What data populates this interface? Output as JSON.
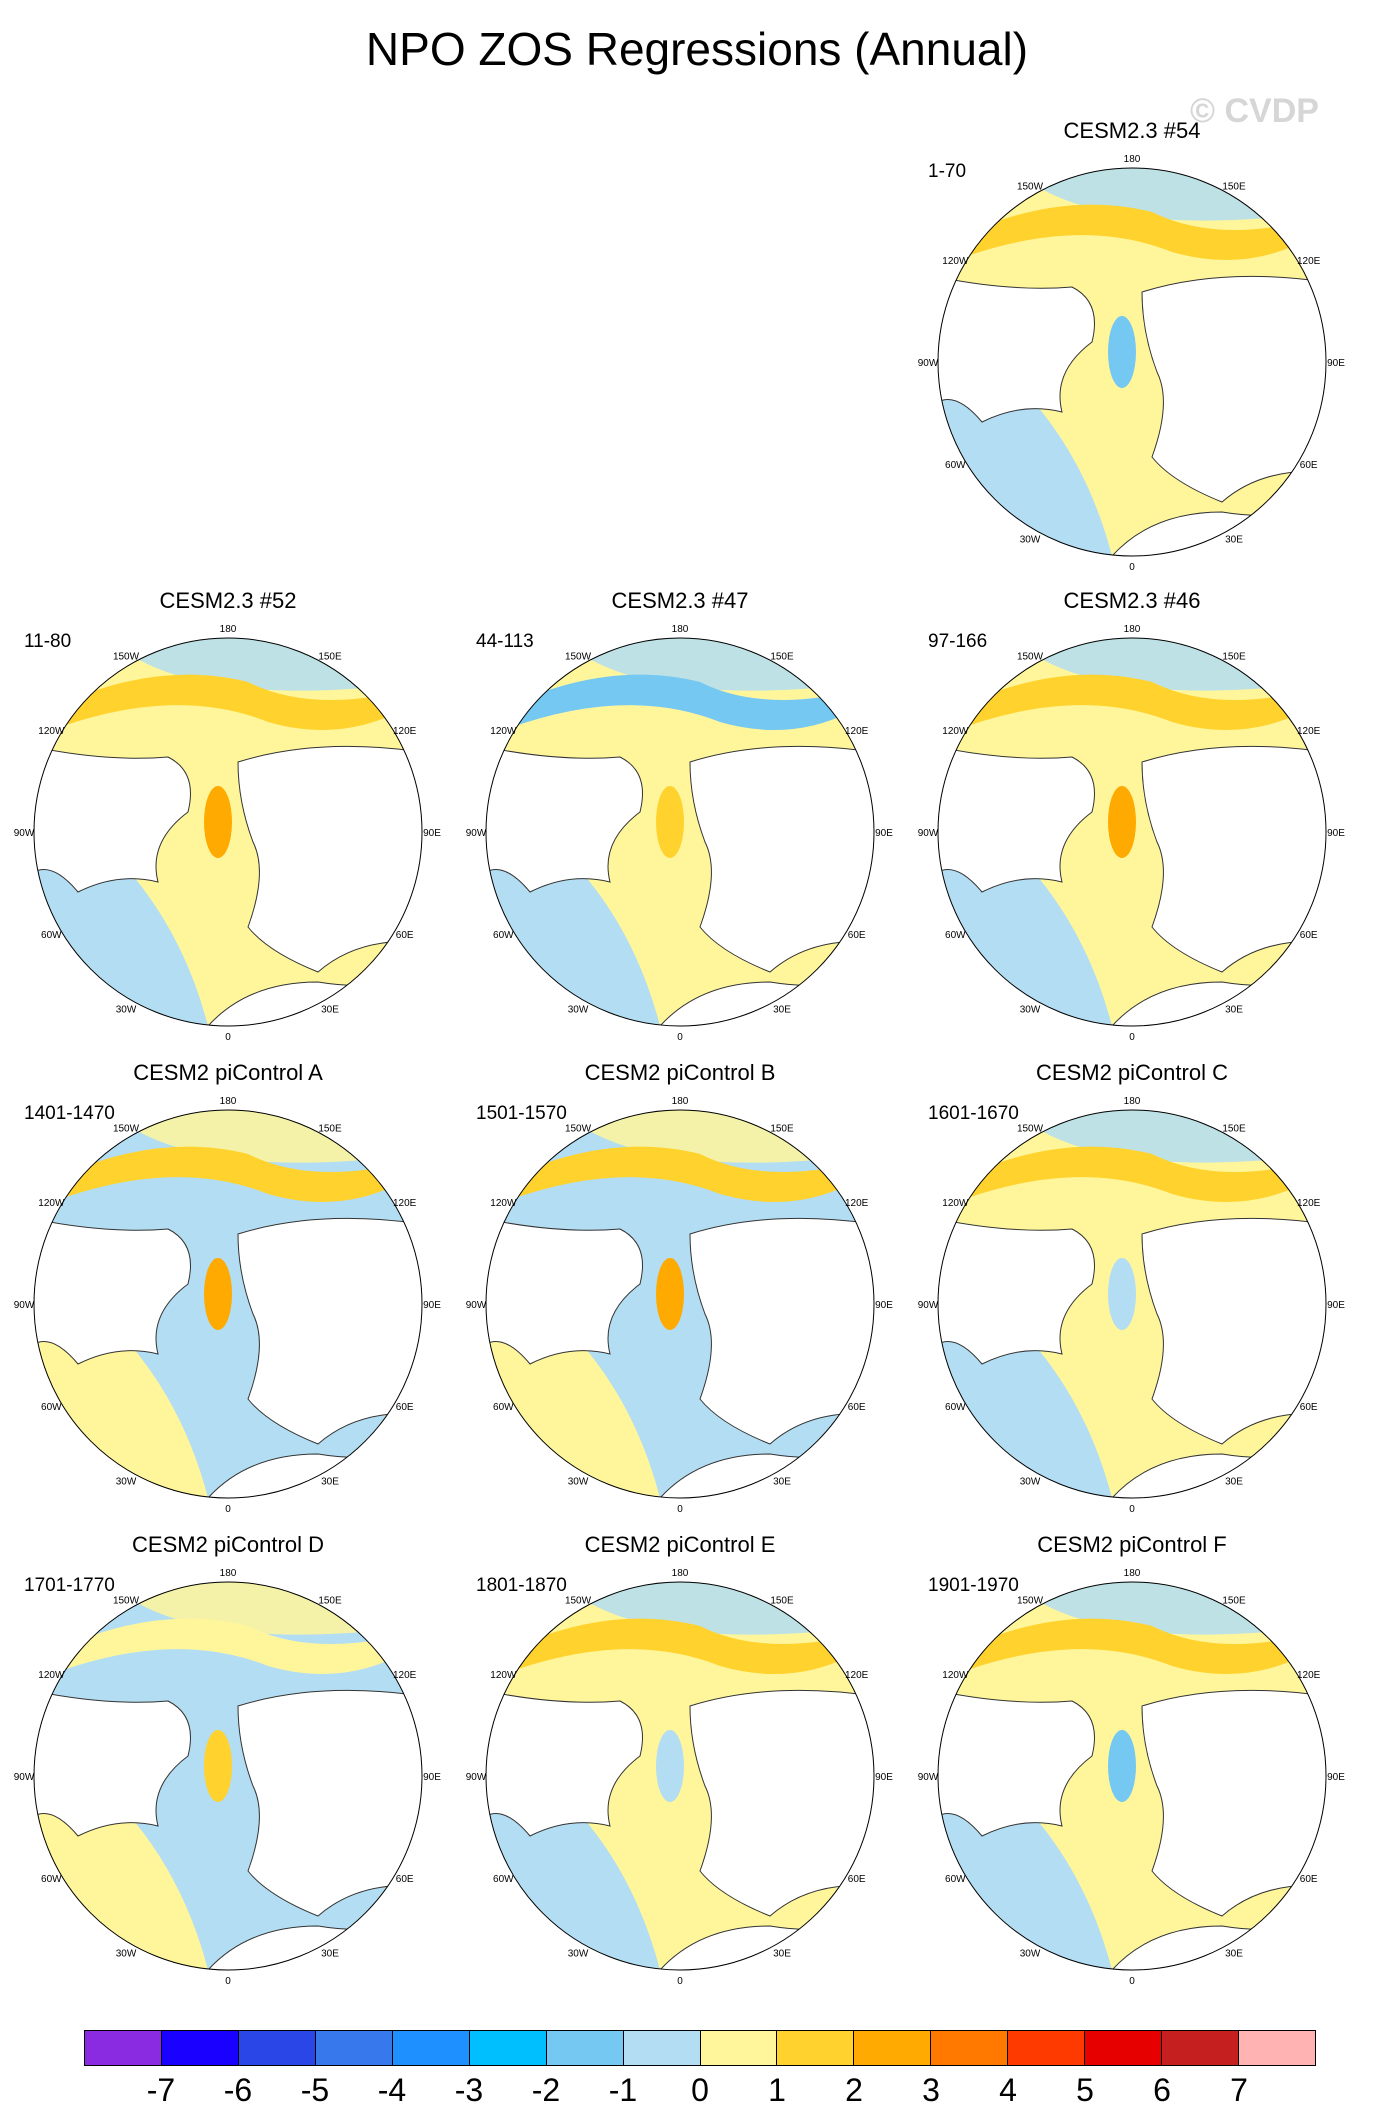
{
  "title": "NPO ZOS Regressions (Annual)",
  "watermark": "© CVDP",
  "lon_labels": [
    "180",
    "150E",
    "120E",
    "90E",
    "60E",
    "30E",
    "0",
    "30W",
    "60W",
    "90W",
    "120W",
    "150W"
  ],
  "colorbar": {
    "tick_labels": [
      "-7",
      "-6",
      "-5",
      "-4",
      "-3",
      "-2",
      "-1",
      "0",
      "1",
      "2",
      "3",
      "4",
      "5",
      "6",
      "7"
    ],
    "colors": [
      "#8a2be2",
      "#1a00ff",
      "#2a46e6",
      "#3779ec",
      "#1e90ff",
      "#00bfff",
      "#74c8f2",
      "#b3ddf2",
      "#fff69b",
      "#ffd22e",
      "#ffaa00",
      "#ff7800",
      "#ff3a00",
      "#e60000",
      "#c61f1f",
      "#ffb3b3"
    ]
  },
  "chart_data": [
    {
      "type": "heatmap",
      "title": "CESM2.3 #54",
      "years": "1-70",
      "dominant": [
        "#fff69b",
        "#b3ddf2"
      ],
      "accent": [
        "#ffd22e",
        "#74c8f2"
      ]
    },
    {
      "type": "heatmap",
      "title": "CESM2.3 #52",
      "years": "11-80",
      "dominant": [
        "#fff69b",
        "#b3ddf2"
      ],
      "accent": [
        "#ffd22e",
        "#ffaa00"
      ]
    },
    {
      "type": "heatmap",
      "title": "CESM2.3 #47",
      "years": "44-113",
      "dominant": [
        "#fff69b",
        "#b3ddf2"
      ],
      "accent": [
        "#74c8f2",
        "#ffd22e"
      ]
    },
    {
      "type": "heatmap",
      "title": "CESM2.3 #46",
      "years": "97-166",
      "dominant": [
        "#fff69b",
        "#b3ddf2"
      ],
      "accent": [
        "#ffd22e",
        "#ffaa00"
      ]
    },
    {
      "type": "heatmap",
      "title": "CESM2 piControl A",
      "years": "1401-1470",
      "dominant": [
        "#b3ddf2",
        "#fff69b"
      ],
      "accent": [
        "#ffd22e",
        "#ffaa00"
      ]
    },
    {
      "type": "heatmap",
      "title": "CESM2 piControl B",
      "years": "1501-1570",
      "dominant": [
        "#b3ddf2",
        "#fff69b"
      ],
      "accent": [
        "#ffd22e",
        "#ffaa00"
      ]
    },
    {
      "type": "heatmap",
      "title": "CESM2 piControl C",
      "years": "1601-1670",
      "dominant": [
        "#fff69b",
        "#b3ddf2"
      ],
      "accent": [
        "#ffd22e",
        "#b3ddf2"
      ]
    },
    {
      "type": "heatmap",
      "title": "CESM2 piControl D",
      "years": "1701-1770",
      "dominant": [
        "#b3ddf2",
        "#fff69b"
      ],
      "accent": [
        "#fff69b",
        "#ffd22e"
      ]
    },
    {
      "type": "heatmap",
      "title": "CESM2 piControl E",
      "years": "1801-1870",
      "dominant": [
        "#fff69b",
        "#b3ddf2"
      ],
      "accent": [
        "#ffd22e",
        "#b3ddf2"
      ]
    },
    {
      "type": "heatmap",
      "title": "CESM2 piControl F",
      "years": "1901-1970",
      "dominant": [
        "#fff69b",
        "#b3ddf2"
      ],
      "accent": [
        "#ffd22e",
        "#74c8f2"
      ]
    }
  ]
}
